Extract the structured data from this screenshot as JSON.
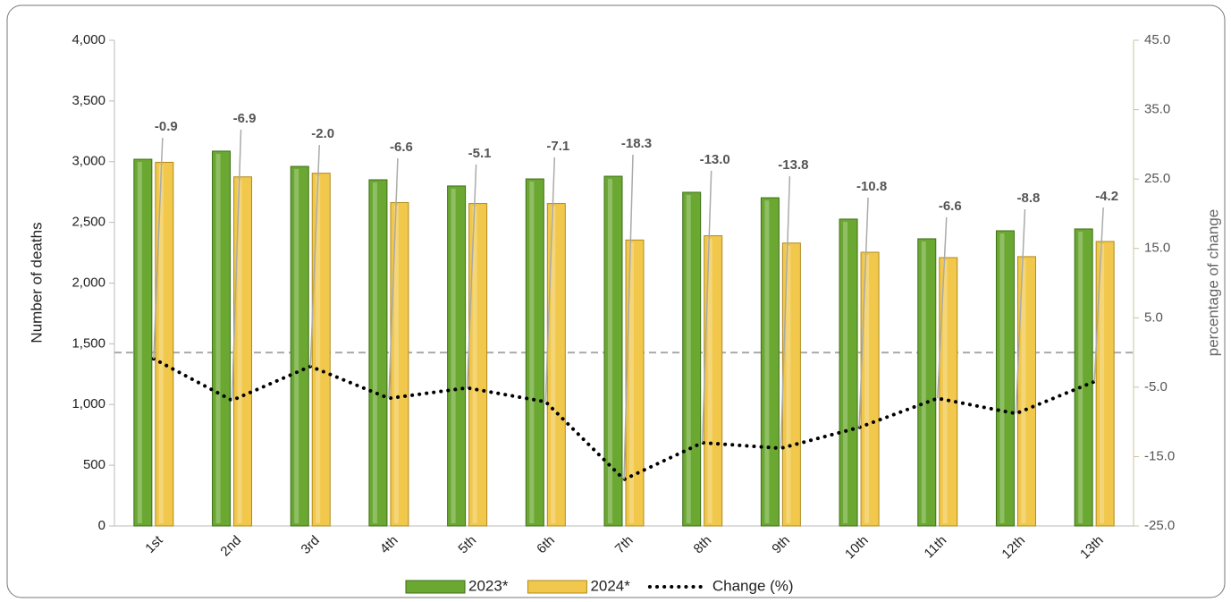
{
  "chart_data": {
    "type": "bar-line",
    "categories": [
      "1st",
      "2nd",
      "3rd",
      "4th",
      "5th",
      "6th",
      "7th",
      "8th",
      "9th",
      "10th",
      "11th",
      "12th",
      "13th"
    ],
    "series": [
      {
        "name": "2023*",
        "color": "#6aa832",
        "values": [
          3020,
          3087,
          2961,
          2851,
          2800,
          2858,
          2880,
          2748,
          2703,
          2527,
          2365,
          2431,
          2446
        ]
      },
      {
        "name": "2024*",
        "color": "#f1c84b",
        "values": [
          2995,
          2875,
          2905,
          2663,
          2655,
          2655,
          2355,
          2390,
          2330,
          2254,
          2210,
          2218,
          2343
        ]
      },
      {
        "name": "Change (%)",
        "color": "#000000",
        "axis": "y2",
        "values": [
          -0.9,
          -6.9,
          -2.0,
          -6.6,
          -5.1,
          -7.1,
          -18.3,
          -13.0,
          -13.8,
          -10.8,
          -6.6,
          -8.8,
          -4.2
        ],
        "value_labels": [
          "-0.9",
          "-6.9",
          "-2.0",
          "-6.6",
          "-5.1",
          "-7.1",
          "-18.3",
          "-13.0",
          "-13.8",
          "-10.8",
          "-6.6",
          "-8.8",
          "-4.2"
        ]
      }
    ],
    "y_label": "Number of deaths",
    "y2_label": "percentage of change",
    "ylim": [
      0,
      4000
    ],
    "yticks": [
      0,
      500,
      {
        "value": 1000,
        "label": "1,000"
      },
      {
        "value": 1500,
        "label": "1,500"
      },
      {
        "value": 2000,
        "label": "2,000"
      },
      {
        "value": 2500,
        "label": "2,500"
      },
      {
        "value": 3000,
        "label": "3,000"
      },
      {
        "value": 3500,
        "label": "3,500"
      },
      {
        "value": 4000,
        "label": "4,000"
      }
    ],
    "y2lim": [
      -25,
      45
    ],
    "y2ticks": [
      {
        "value": -25,
        "label": "-25.0"
      },
      {
        "value": -15,
        "label": "-15.0"
      },
      {
        "value": -5,
        "label": "-5.0"
      },
      {
        "value": 5,
        "label": "5.0"
      },
      {
        "value": 15,
        "label": "15.0"
      },
      {
        "value": 25,
        "label": "25.0"
      },
      {
        "value": 35,
        "label": "35.0"
      },
      {
        "value": 45,
        "label": "45.0"
      }
    ],
    "legend": "bottom"
  }
}
